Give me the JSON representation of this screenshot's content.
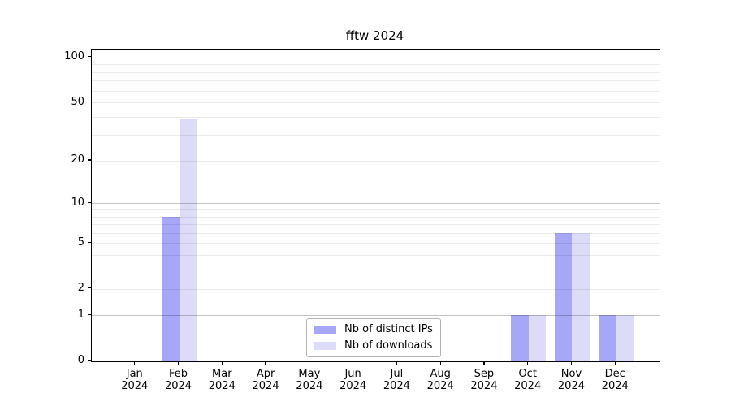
{
  "chart": {
    "title": "fftw 2024"
  },
  "legend": {
    "items": [
      {
        "label": "Nb of distinct IPs",
        "color": "#a7a7f7"
      },
      {
        "label": "Nb of downloads",
        "color": "#dcdcf9"
      }
    ]
  },
  "chart_data": {
    "type": "bar",
    "title": "fftw 2024",
    "categories": [
      "Jan",
      "Feb",
      "Mar",
      "Apr",
      "May",
      "Jun",
      "Jul",
      "Aug",
      "Sep",
      "Oct",
      "Nov",
      "Dec"
    ],
    "category_year": "2024",
    "series": [
      {
        "name": "Nb of distinct IPs",
        "color": "#a7a7f7",
        "values": [
          0,
          8,
          0,
          0,
          0,
          0,
          0,
          0,
          0,
          1,
          6,
          1
        ]
      },
      {
        "name": "Nb of downloads",
        "color": "#dcdcf9",
        "values": [
          0,
          39,
          0,
          0,
          0,
          0,
          0,
          0,
          0,
          1,
          6,
          1
        ]
      }
    ],
    "yscale": "log1p",
    "yticks": [
      0,
      1,
      2,
      5,
      10,
      20,
      50,
      100
    ],
    "minor_yticks": [
      3,
      4,
      6,
      7,
      8,
      9,
      30,
      40,
      60,
      70,
      80,
      90
    ],
    "decade_ticks": [
      1,
      10,
      100
    ],
    "ylim": [
      0,
      113
    ],
    "xlabel": "",
    "ylabel": "",
    "grid": "horizontal",
    "legend_position": "lower center",
    "colors": {
      "grid_minor": "rgba(0,0,0,0.08)",
      "grid_decade": "rgba(0,0,0,0.23)",
      "axis": "#000000"
    }
  }
}
